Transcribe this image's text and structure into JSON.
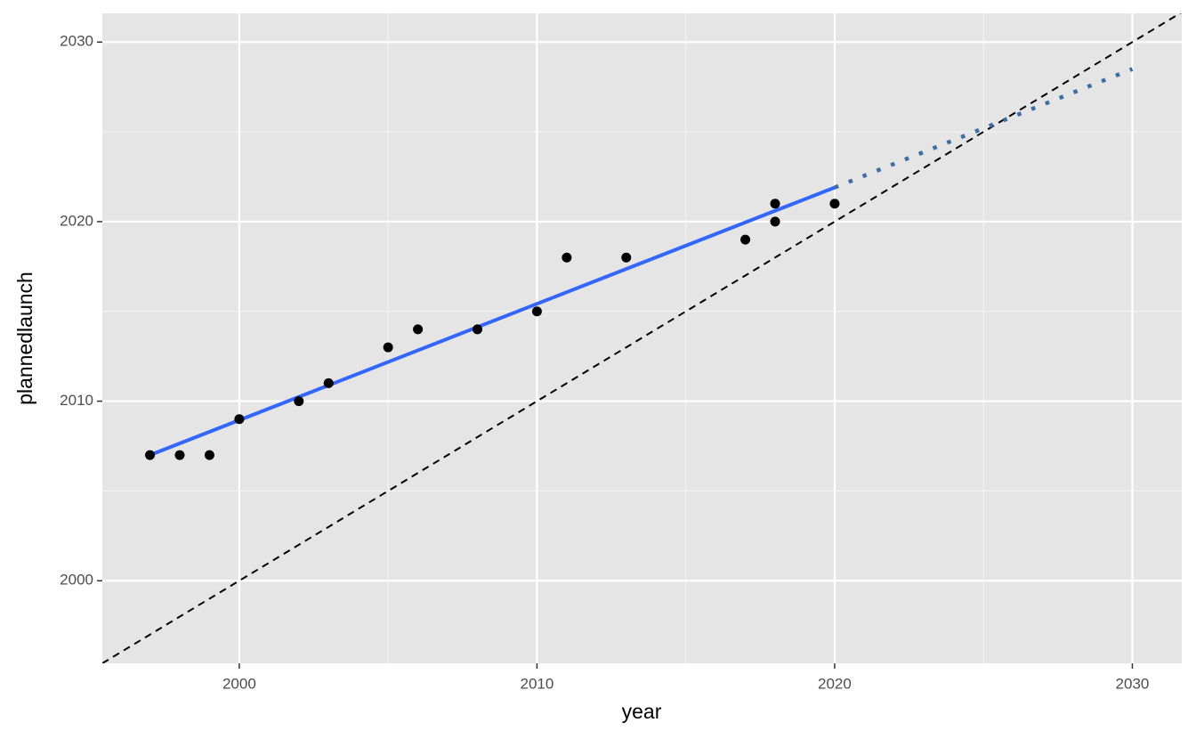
{
  "chart_data": {
    "type": "scatter",
    "x_label": "year",
    "y_label": "plannedlaunch",
    "xlim": [
      1995.4,
      2031.66
    ],
    "ylim": [
      1995.4,
      2031.6
    ],
    "xticks": [
      2000,
      2010,
      2020,
      2030
    ],
    "yticks": [
      2000,
      2010,
      2020,
      2030
    ],
    "xminor": [
      2005,
      2015,
      2025
    ],
    "yminor": [
      2005,
      2015,
      2025
    ],
    "points": {
      "color": "#000000",
      "x": [
        1997,
        1998,
        1999,
        2000,
        2002,
        2003,
        2005,
        2006,
        2008,
        2010,
        2011,
        2013,
        2017,
        2018,
        2018,
        2020
      ],
      "y": [
        2007,
        2007,
        2007,
        2009,
        2010,
        2011,
        2013,
        2014,
        2014,
        2015,
        2018,
        2018,
        2019,
        2021,
        2020,
        2021
      ]
    },
    "lines": [
      {
        "x": [
          1995.4,
          2031.66
        ],
        "y": [
          1995.4,
          2031.66
        ],
        "color": "#000000",
        "style": "dashed"
      },
      {
        "x": [
          1997,
          2020
        ],
        "y": [
          2007.0,
          2021.9
        ],
        "color": "#3366ff",
        "style": "solid"
      },
      {
        "x": [
          2020,
          2030
        ],
        "y": [
          2021.9,
          2028.5
        ],
        "color": "#3a6ea5",
        "style": "dotted"
      }
    ]
  }
}
